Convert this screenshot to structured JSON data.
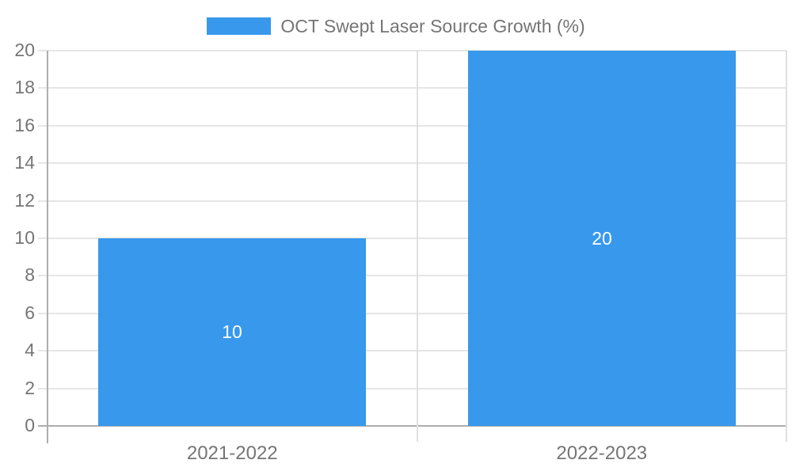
{
  "chart_data": {
    "type": "bar",
    "title": "OCT Swept Laser Source Growth (%)",
    "categories": [
      "2021-2022",
      "2022-2023"
    ],
    "series": [
      {
        "name": "OCT Swept Laser Source Growth (%)",
        "values": [
          10,
          20
        ]
      }
    ],
    "data_labels": [
      "10",
      "20"
    ],
    "yticks": [
      0,
      2,
      4,
      6,
      8,
      10,
      12,
      14,
      16,
      18,
      20
    ],
    "ylim": [
      0,
      20
    ],
    "xlabel": "",
    "ylabel": "",
    "grid": "horizontal-on",
    "legend_position": "top-center",
    "colors": {
      "bar": "#3898ec",
      "bar_value_label": "#ffffff",
      "axis_text": "#757575",
      "gridline": "#e6e6e6",
      "axis_line": "#aeaeae",
      "boundary_line": "#e0e0e0",
      "background": "#ffffff"
    }
  }
}
